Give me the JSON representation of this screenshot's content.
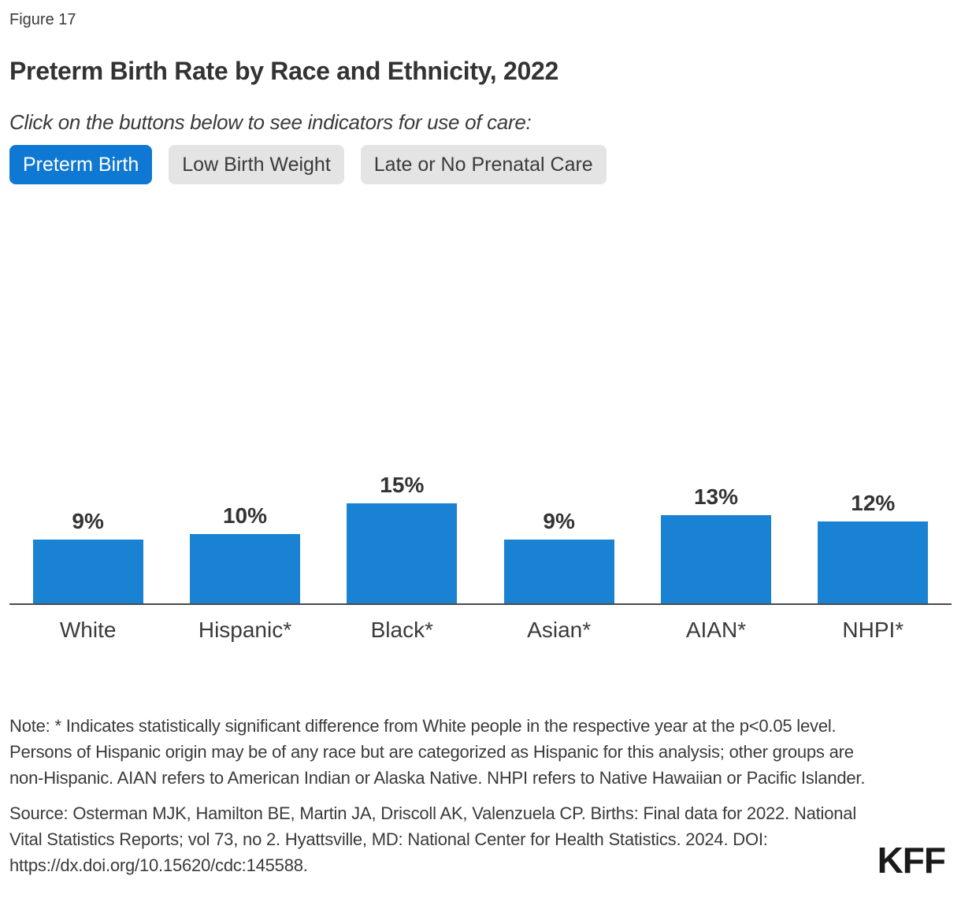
{
  "figure_label": "Figure 17",
  "title": "Preterm Birth Rate by Race and Ethnicity, 2022",
  "subtitle": "Click on the buttons below to see indicators for use of care:",
  "buttons": [
    {
      "label": "Preterm Birth",
      "active": true
    },
    {
      "label": "Low Birth Weight",
      "active": false
    },
    {
      "label": "Late or No Prenatal Care",
      "active": false
    }
  ],
  "colors": {
    "active_button_blue": "#0f78d2",
    "inactive_button_gray": "#e4e4e4",
    "bar_blue": "#1a82d2",
    "text_dark": "#3a3a3a",
    "axis_gray": "#4a4a4a"
  },
  "chart_data": {
    "type": "bar",
    "title": "Preterm Birth Rate by Race and Ethnicity, 2022",
    "categories": [
      "White",
      "Hispanic*",
      "Black*",
      "Asian*",
      "AIAN*",
      "NHPI*"
    ],
    "values": [
      9,
      10,
      15,
      9,
      13,
      12
    ],
    "value_labels": [
      "9%",
      "10%",
      "15%",
      "9%",
      "13%",
      "12%"
    ],
    "xlabel": "",
    "ylabel": "",
    "ylim": [
      0,
      16
    ],
    "grid": false,
    "legend": false,
    "bar_color": "#1a82d2"
  },
  "note": "Note: * Indicates statistically significant difference from White people in the respective year at the p<0.05 level. Persons of Hispanic origin may be of any race but are categorized as Hispanic for this analysis; other groups are non-Hispanic. AIAN refers to American Indian or Alaska Native. NHPI refers to Native Hawaiian or Pacific Islander.",
  "source": "Source: Osterman MJK, Hamilton BE, Martin JA, Driscoll AK, Valenzuela CP. Births: Final data for 2022. National Vital Statistics Reports; vol 73, no 2. Hyattsville, MD: National Center for Health Statistics. 2024. DOI: https://dx.doi.org/10.15620/cdc:145588.",
  "logo": "KFF"
}
